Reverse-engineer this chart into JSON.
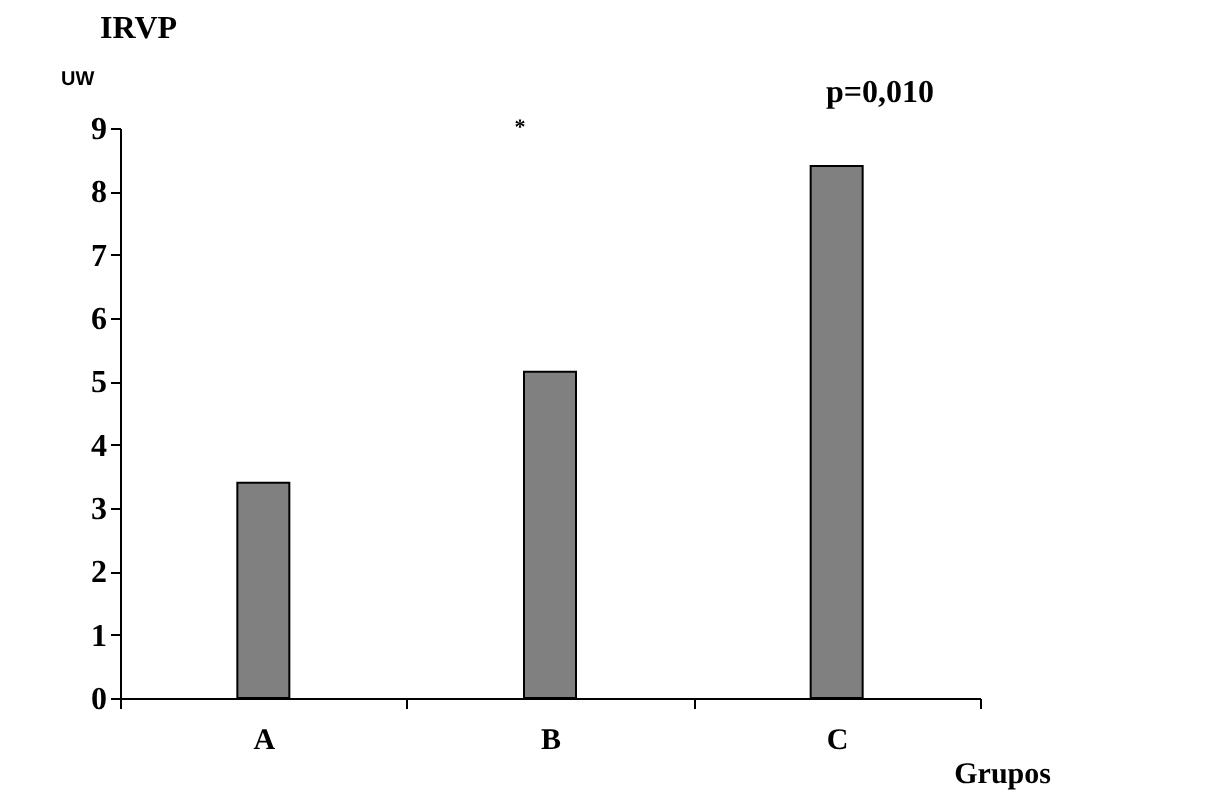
{
  "chart_data": {
    "type": "bar",
    "title": "IRVP",
    "ylabel": "UW",
    "xlabel": "Grupos",
    "categories": [
      "A",
      "B",
      "C",
      null
    ],
    "values": [
      3.4,
      5.15,
      8.4,
      null
    ],
    "color": "#808080",
    "ylim": [
      0,
      9
    ],
    "yticks": [
      0,
      1,
      2,
      3,
      4,
      5,
      6,
      7,
      8,
      9
    ],
    "grid": false,
    "annotations": [
      "*",
      "p=0,010"
    ]
  }
}
